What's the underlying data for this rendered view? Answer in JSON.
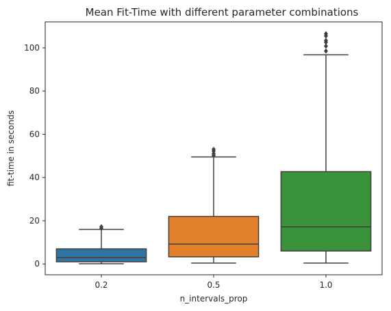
{
  "chart_data": {
    "type": "boxplot",
    "title": "Mean Fit-Time with different parameter combinations",
    "xlabel": "n_intervals_prop",
    "ylabel": "fit-time in seconds",
    "categories": [
      "0.2",
      "0.5",
      "1.0"
    ],
    "ylim": [
      -5,
      112
    ],
    "yticks": [
      0,
      20,
      40,
      60,
      80,
      100
    ],
    "grid": false,
    "boxes": [
      {
        "category": "0.2",
        "color": "#3274a1",
        "whisker_low": 0.1,
        "q1": 1.0,
        "median": 3.0,
        "q3": 7.0,
        "whisker_high": 16.0,
        "outliers": [
          16.5,
          17.2
        ]
      },
      {
        "category": "0.5",
        "color": "#e1812c",
        "whisker_low": 0.4,
        "q1": 3.3,
        "median": 9.2,
        "q3": 22.0,
        "whisker_high": 49.5,
        "outliers": [
          50.2,
          51.0,
          52.2,
          53.0
        ]
      },
      {
        "category": "1.0",
        "color": "#3a923a",
        "whisker_low": 0.4,
        "q1": 6.0,
        "median": 17.2,
        "q3": 42.7,
        "whisker_high": 96.8,
        "outliers": [
          98.5,
          100.8,
          102.6,
          103.4,
          105.5,
          106.5
        ]
      }
    ]
  }
}
